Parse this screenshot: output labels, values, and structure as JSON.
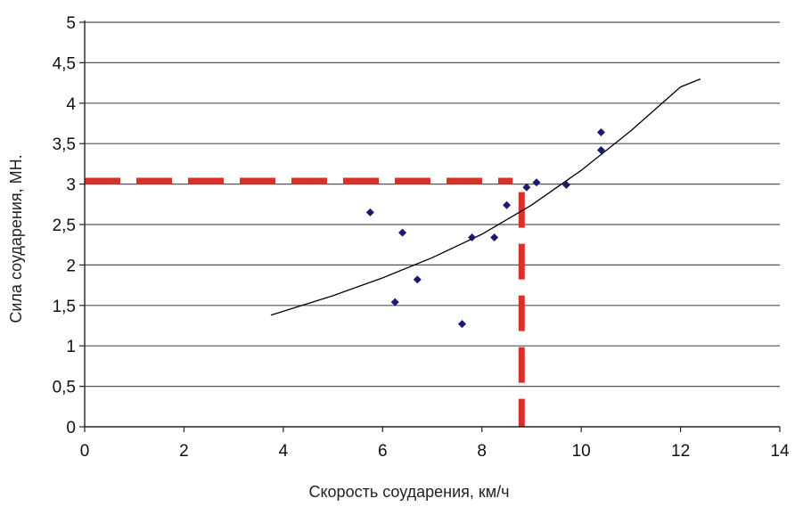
{
  "chart_data": {
    "type": "scatter",
    "title": "",
    "xlabel": "Скорость соударения, км/ч",
    "ylabel": "Сила соударения, МН.",
    "xlim": [
      0,
      14
    ],
    "ylim": [
      0,
      5
    ],
    "x_ticks": [
      0,
      2,
      4,
      6,
      8,
      10,
      12,
      14
    ],
    "y_ticks": [
      0,
      0.5,
      1,
      1.5,
      2,
      2.5,
      3,
      3.5,
      4,
      4.5,
      5
    ],
    "x_tick_labels": [
      "0",
      "2",
      "4",
      "6",
      "8",
      "10",
      "12",
      "14"
    ],
    "y_tick_labels": [
      "0",
      "0,5",
      "1",
      "1,5",
      "2",
      "2,5",
      "3",
      "3,5",
      "4",
      "4,5",
      "5"
    ],
    "grid": "horizontal",
    "marker_color": "#1a1a6e",
    "points": [
      {
        "x": 5.75,
        "y": 2.65
      },
      {
        "x": 6.25,
        "y": 1.54
      },
      {
        "x": 6.4,
        "y": 2.4
      },
      {
        "x": 6.7,
        "y": 1.82
      },
      {
        "x": 7.6,
        "y": 1.27
      },
      {
        "x": 7.8,
        "y": 2.34
      },
      {
        "x": 8.25,
        "y": 2.34
      },
      {
        "x": 8.5,
        "y": 2.74
      },
      {
        "x": 8.9,
        "y": 2.96
      },
      {
        "x": 9.1,
        "y": 3.02
      },
      {
        "x": 9.7,
        "y": 2.99
      },
      {
        "x": 10.4,
        "y": 3.64
      },
      {
        "x": 10.4,
        "y": 3.42
      }
    ],
    "trendline": {
      "type": "exponential",
      "color": "#000000",
      "points": [
        {
          "x": 3.75,
          "y": 1.38
        },
        {
          "x": 5,
          "y": 1.62
        },
        {
          "x": 6,
          "y": 1.84
        },
        {
          "x": 7,
          "y": 2.09
        },
        {
          "x": 8,
          "y": 2.38
        },
        {
          "x": 9,
          "y": 2.74
        },
        {
          "x": 10,
          "y": 3.17
        },
        {
          "x": 11,
          "y": 3.66
        },
        {
          "x": 12,
          "y": 4.2
        },
        {
          "x": 12.4,
          "y": 4.3
        }
      ]
    },
    "reference_lines": {
      "color": "#d9312a",
      "horizontal_y": 3.04,
      "vertical_x": 8.8,
      "style": "dashed"
    }
  }
}
